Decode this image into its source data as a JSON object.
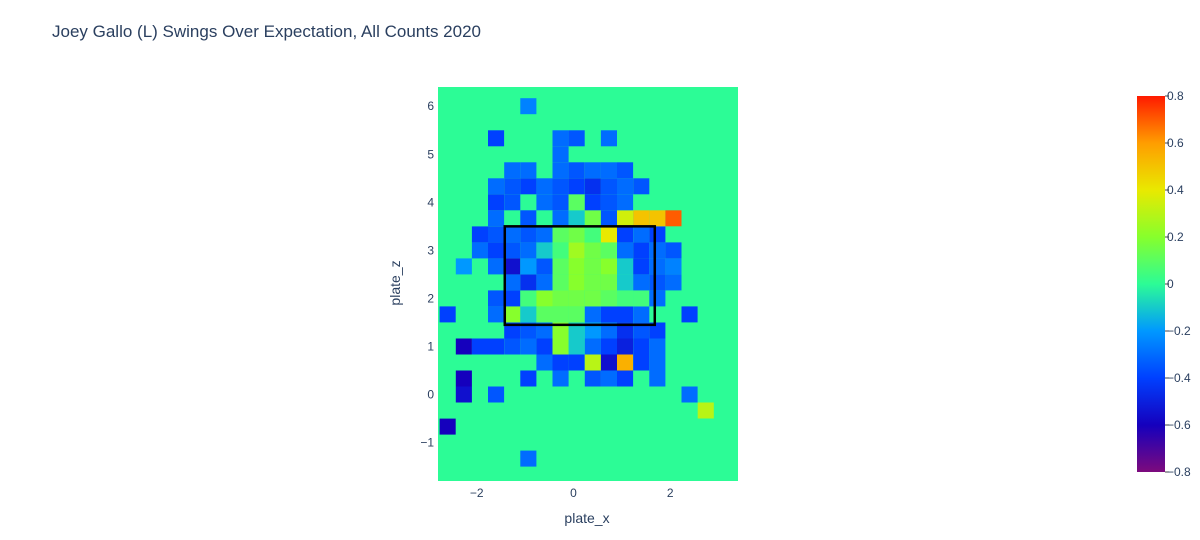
{
  "chart_data": {
    "type": "heatmap",
    "title": "Joey Gallo (L) Swings Over Expectation, All Counts 2020",
    "xlabel": "plate_x",
    "ylabel": "plate_z",
    "xlim": [
      -2.8,
      3.4
    ],
    "ylim": [
      -1.8,
      6.4
    ],
    "x_ticks": [
      -2,
      0,
      2
    ],
    "y_ticks": [
      -1,
      0,
      1,
      2,
      3,
      4,
      5,
      6
    ],
    "x_tick_labels": [
      "−2",
      "0",
      "2"
    ],
    "y_tick_labels": [
      "−1",
      "0",
      "1",
      "2",
      "3",
      "4",
      "5",
      "6"
    ],
    "background_value": 0,
    "x_bins": [
      -2.6,
      -2.266,
      -1.933,
      -1.6,
      -1.266,
      -0.933,
      -0.6,
      -0.266,
      0.066,
      0.4,
      0.733,
      1.066,
      1.4,
      1.733,
      2.066,
      2.4,
      2.733
    ],
    "y_bins": [
      -1.333,
      -0.667,
      0,
      0.333,
      0.667,
      1.0,
      1.333,
      1.667,
      2.0,
      2.333,
      2.667,
      3.0,
      3.333,
      3.667,
      4.0,
      4.333,
      4.667,
      5.0,
      5.333,
      6.0
    ],
    "cells": [
      [
        -2.6,
        -0.667,
        -0.6
      ],
      [
        -0.933,
        -1.333,
        -0.3
      ],
      [
        -2.266,
        0,
        -0.55
      ],
      [
        -1.6,
        0,
        -0.35
      ],
      [
        2.4,
        0,
        -0.3
      ],
      [
        2.733,
        -0.333,
        0.3
      ],
      [
        -2.266,
        0.333,
        -0.6
      ],
      [
        -0.933,
        0.333,
        -0.4
      ],
      [
        -0.266,
        0.333,
        -0.3
      ],
      [
        0.4,
        0.333,
        -0.35
      ],
      [
        0.733,
        0.333,
        -0.3
      ],
      [
        1.066,
        0.333,
        -0.4
      ],
      [
        1.733,
        0.333,
        -0.3
      ],
      [
        -0.6,
        0.667,
        -0.3
      ],
      [
        -0.266,
        0.667,
        -0.4
      ],
      [
        0.066,
        0.667,
        -0.4
      ],
      [
        0.4,
        0.667,
        0.3
      ],
      [
        0.733,
        0.667,
        -0.55
      ],
      [
        1.066,
        0.667,
        0.55
      ],
      [
        1.4,
        0.667,
        -0.4
      ],
      [
        1.733,
        0.667,
        -0.3
      ],
      [
        -2.266,
        1.0,
        -0.6
      ],
      [
        -1.933,
        1.0,
        -0.4
      ],
      [
        -1.6,
        1.0,
        -0.4
      ],
      [
        -1.266,
        1.0,
        -0.35
      ],
      [
        -0.933,
        1.0,
        -0.3
      ],
      [
        -0.6,
        1.0,
        -0.4
      ],
      [
        -0.266,
        1.0,
        0.2
      ],
      [
        0.066,
        1.0,
        -0.1
      ],
      [
        0.4,
        1.0,
        -0.3
      ],
      [
        0.733,
        1.0,
        -0.4
      ],
      [
        1.066,
        1.0,
        -0.5
      ],
      [
        1.4,
        1.0,
        -0.4
      ],
      [
        1.733,
        1.0,
        -0.3
      ],
      [
        -1.266,
        1.333,
        -0.4
      ],
      [
        -0.933,
        1.333,
        -0.35
      ],
      [
        -0.6,
        1.333,
        -0.3
      ],
      [
        -0.266,
        1.333,
        0.2
      ],
      [
        0.066,
        1.333,
        -0.1
      ],
      [
        0.4,
        1.333,
        -0.2
      ],
      [
        0.733,
        1.333,
        -0.3
      ],
      [
        1.066,
        1.333,
        -0.45
      ],
      [
        1.4,
        1.333,
        -0.35
      ],
      [
        1.733,
        1.333,
        -0.4
      ],
      [
        -2.6,
        1.667,
        -0.4
      ],
      [
        -1.6,
        1.667,
        -0.3
      ],
      [
        -1.266,
        1.667,
        0.2
      ],
      [
        -0.933,
        1.667,
        -0.1
      ],
      [
        -0.6,
        1.667,
        0.1
      ],
      [
        -0.266,
        1.667,
        0.1
      ],
      [
        0.066,
        1.667,
        0.1
      ],
      [
        0.4,
        1.667,
        -0.3
      ],
      [
        0.733,
        1.667,
        -0.4
      ],
      [
        1.066,
        1.667,
        -0.4
      ],
      [
        1.4,
        1.667,
        -0.3
      ],
      [
        2.4,
        1.667,
        -0.4
      ],
      [
        -1.6,
        2.0,
        -0.35
      ],
      [
        -1.266,
        2.0,
        -0.4
      ],
      [
        -0.933,
        2.0,
        0.05
      ],
      [
        -0.6,
        2.0,
        0.2
      ],
      [
        -0.266,
        2.0,
        0.15
      ],
      [
        0.066,
        2.0,
        0.15
      ],
      [
        0.4,
        2.0,
        0.15
      ],
      [
        0.733,
        2.0,
        0.1
      ],
      [
        1.066,
        2.0,
        0.05
      ],
      [
        1.4,
        2.0,
        0.05
      ],
      [
        1.733,
        2.0,
        -0.3
      ],
      [
        -1.266,
        2.333,
        -0.3
      ],
      [
        -0.933,
        2.333,
        -0.45
      ],
      [
        -0.6,
        2.333,
        -0.3
      ],
      [
        -0.266,
        2.333,
        0.1
      ],
      [
        0.066,
        2.333,
        0.2
      ],
      [
        0.4,
        2.333,
        0.15
      ],
      [
        0.733,
        2.333,
        0.15
      ],
      [
        1.066,
        2.333,
        -0.1
      ],
      [
        1.4,
        2.333,
        -0.3
      ],
      [
        1.733,
        2.333,
        -0.35
      ],
      [
        2.066,
        2.333,
        -0.3
      ],
      [
        -2.266,
        2.667,
        -0.2
      ],
      [
        -1.6,
        2.667,
        -0.3
      ],
      [
        -1.266,
        2.667,
        -0.55
      ],
      [
        -0.933,
        2.667,
        -0.2
      ],
      [
        -0.6,
        2.667,
        -0.35
      ],
      [
        -0.266,
        2.667,
        0.1
      ],
      [
        0.066,
        2.667,
        0.2
      ],
      [
        0.4,
        2.667,
        0.15
      ],
      [
        0.733,
        2.667,
        0.2
      ],
      [
        1.066,
        2.667,
        -0.1
      ],
      [
        1.4,
        2.667,
        -0.4
      ],
      [
        1.733,
        2.667,
        -0.3
      ],
      [
        2.066,
        2.667,
        -0.25
      ],
      [
        -1.933,
        3.0,
        -0.3
      ],
      [
        -1.6,
        3.0,
        -0.4
      ],
      [
        -1.266,
        3.0,
        -0.35
      ],
      [
        -0.933,
        3.0,
        -0.3
      ],
      [
        -0.6,
        3.0,
        -0.1
      ],
      [
        -0.266,
        3.0,
        0.05
      ],
      [
        0.066,
        3.0,
        0.25
      ],
      [
        0.4,
        3.0,
        0.15
      ],
      [
        0.733,
        3.0,
        0.1
      ],
      [
        1.066,
        3.0,
        -0.3
      ],
      [
        1.4,
        3.0,
        -0.4
      ],
      [
        1.733,
        3.0,
        -0.3
      ],
      [
        2.066,
        3.0,
        -0.35
      ],
      [
        -1.933,
        3.333,
        -0.4
      ],
      [
        -1.6,
        3.333,
        -0.35
      ],
      [
        -1.266,
        3.333,
        -0.3
      ],
      [
        -0.933,
        3.333,
        -0.35
      ],
      [
        -0.6,
        3.333,
        -0.3
      ],
      [
        -0.266,
        3.333,
        0.1
      ],
      [
        0.066,
        3.333,
        0.15
      ],
      [
        0.4,
        3.333,
        0.05
      ],
      [
        0.733,
        3.333,
        0.4
      ],
      [
        1.066,
        3.333,
        -0.4
      ],
      [
        1.4,
        3.333,
        -0.3
      ],
      [
        1.733,
        3.333,
        -0.4
      ],
      [
        -1.6,
        3.667,
        -0.3
      ],
      [
        -0.933,
        3.667,
        -0.35
      ],
      [
        -0.6,
        3.667,
        0.0
      ],
      [
        -0.266,
        3.667,
        -0.3
      ],
      [
        0.066,
        3.667,
        -0.1
      ],
      [
        0.4,
        3.667,
        0.15
      ],
      [
        0.733,
        3.667,
        -0.35
      ],
      [
        1.066,
        3.667,
        0.35
      ],
      [
        1.4,
        3.667,
        0.5
      ],
      [
        1.733,
        3.667,
        0.5
      ],
      [
        2.066,
        3.667,
        0.7
      ],
      [
        -1.6,
        4.0,
        -0.4
      ],
      [
        -1.266,
        4.0,
        -0.35
      ],
      [
        -0.6,
        4.0,
        -0.3
      ],
      [
        -0.266,
        4.0,
        -0.35
      ],
      [
        0.066,
        4.0,
        0.1
      ],
      [
        0.4,
        4.0,
        -0.4
      ],
      [
        0.733,
        4.0,
        -0.35
      ],
      [
        1.066,
        4.0,
        -0.3
      ],
      [
        -1.6,
        4.333,
        -0.3
      ],
      [
        -1.266,
        4.333,
        -0.35
      ],
      [
        -0.933,
        4.333,
        -0.4
      ],
      [
        -0.6,
        4.333,
        -0.3
      ],
      [
        -0.266,
        4.333,
        -0.35
      ],
      [
        0.066,
        4.333,
        -0.4
      ],
      [
        0.4,
        4.333,
        -0.45
      ],
      [
        0.733,
        4.333,
        -0.35
      ],
      [
        1.066,
        4.333,
        -0.3
      ],
      [
        1.4,
        4.333,
        -0.35
      ],
      [
        -1.266,
        4.667,
        -0.3
      ],
      [
        -0.933,
        4.667,
        -0.3
      ],
      [
        -0.266,
        4.667,
        -0.3
      ],
      [
        0.066,
        4.667,
        -0.35
      ],
      [
        0.4,
        4.667,
        -0.3
      ],
      [
        0.733,
        4.667,
        -0.3
      ],
      [
        1.066,
        4.667,
        -0.35
      ],
      [
        -0.266,
        5.0,
        -0.3
      ],
      [
        -1.6,
        5.333,
        -0.4
      ],
      [
        -0.266,
        5.333,
        -0.3
      ],
      [
        0.066,
        5.333,
        -0.35
      ],
      [
        0.733,
        5.333,
        -0.3
      ],
      [
        -0.933,
        6.0,
        -0.25
      ]
    ],
    "zlim": [
      -0.8,
      0.8
    ],
    "colorbar_ticks": [
      0.8,
      0.6,
      0.4,
      0.2,
      0,
      -0.2,
      -0.4,
      -0.6,
      -0.8
    ],
    "colorbar_tick_labels": [
      "0.8",
      "0.6",
      "0.4",
      "0.2",
      "0",
      "−0.2",
      "−0.4",
      "−0.6",
      "−0.8"
    ],
    "strike_zone": {
      "x0": -1.42,
      "x1": 1.68,
      "z0": 1.45,
      "z1": 3.5
    },
    "colorscale": [
      "#7d0a7d",
      "#1500bd",
      "#0040ff",
      "#0098ff",
      "#2cfc96",
      "#87ff2c",
      "#e9e900",
      "#ff9d00",
      "#ff1a00"
    ],
    "grid": false,
    "legend": "colorbar-right"
  }
}
